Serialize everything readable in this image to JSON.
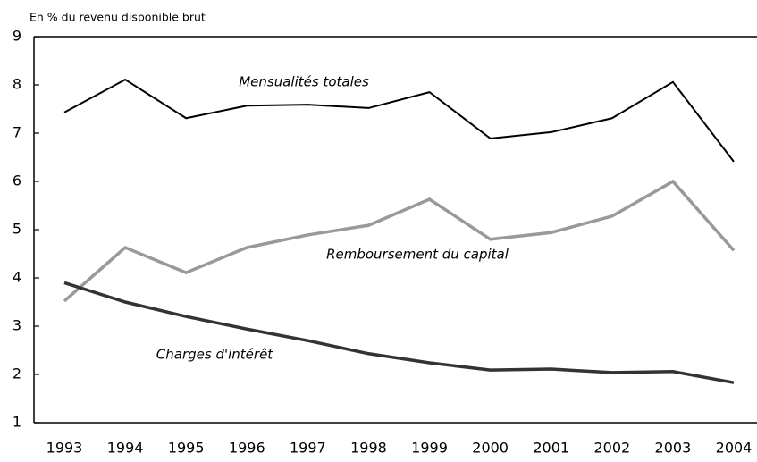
{
  "chart_data": {
    "type": "line",
    "y_axis_title": "En % du revenu disponible brut",
    "categories": [
      "1993",
      "1994",
      "1995",
      "1996",
      "1997",
      "1998",
      "1999",
      "2000",
      "2001",
      "2002",
      "2003",
      "2004"
    ],
    "series": [
      {
        "name": "Mensualités totales",
        "color": "#000000",
        "values": [
          7.43,
          8.11,
          7.31,
          7.57,
          7.59,
          7.52,
          7.85,
          6.89,
          7.02,
          7.31,
          8.06,
          6.41
        ]
      },
      {
        "name": "Remboursement du capital",
        "color": "#999999",
        "values": [
          3.52,
          4.63,
          4.11,
          4.63,
          4.89,
          5.09,
          5.63,
          4.8,
          4.94,
          5.28,
          6.0,
          4.57
        ]
      },
      {
        "name": "Charges d'intérêt",
        "color": "#333333",
        "values": [
          3.9,
          3.5,
          3.2,
          2.94,
          2.7,
          2.43,
          2.24,
          2.09,
          2.11,
          2.04,
          2.06,
          1.83
        ]
      }
    ],
    "ylim": [
      1,
      9
    ],
    "yticks": [
      1,
      2,
      3,
      4,
      5,
      6,
      7,
      8,
      9
    ]
  }
}
